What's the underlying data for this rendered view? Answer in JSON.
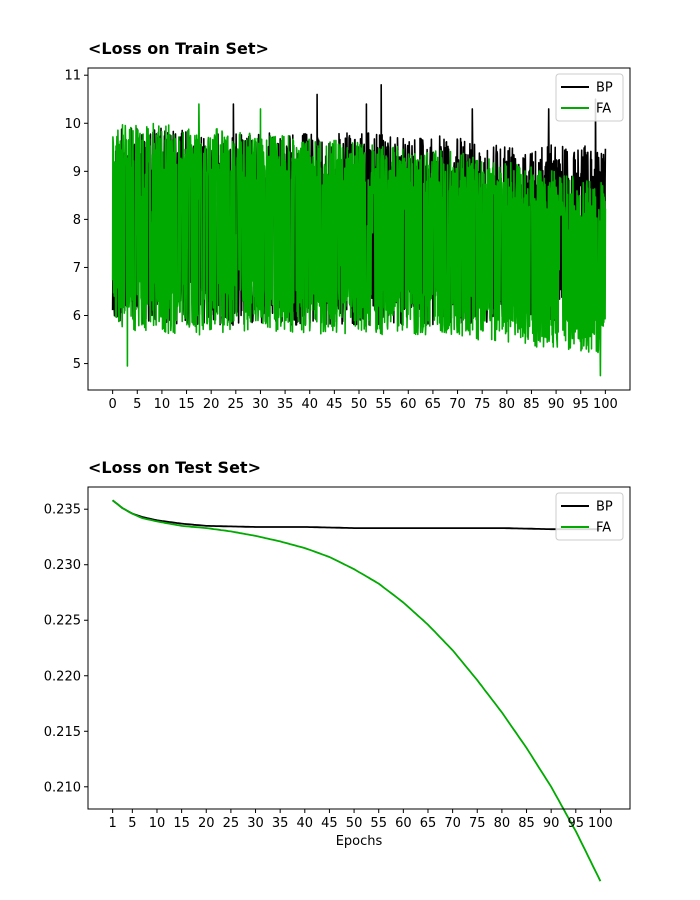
{
  "colors": {
    "bp": "#000000",
    "fa": "#00aa00"
  },
  "chart_data": [
    {
      "type": "line",
      "title": "<Loss on Train Set>",
      "xlabel": "",
      "ylabel": "",
      "xlim": [
        -5,
        105
      ],
      "ylim": [
        4.45,
        11.15
      ],
      "xticks": [
        0,
        5,
        10,
        15,
        20,
        25,
        30,
        35,
        40,
        45,
        50,
        55,
        60,
        65,
        70,
        75,
        80,
        85,
        90,
        95,
        100
      ],
      "yticks": [
        5,
        6,
        7,
        8,
        9,
        10,
        11
      ],
      "legend": "upper-right",
      "grid": false,
      "note": "noisy per-iteration loss; envelope values sampled",
      "envelope_x": [
        0,
        10,
        20,
        30,
        40,
        50,
        60,
        70,
        80,
        90,
        100
      ],
      "series": [
        {
          "name": "BP",
          "color": "#000000",
          "upper": [
            9.9,
            9.9,
            9.8,
            9.8,
            9.8,
            9.8,
            9.8,
            9.7,
            9.6,
            9.6,
            9.5
          ],
          "lower": [
            5.8,
            5.8,
            5.8,
            5.8,
            5.8,
            5.8,
            5.8,
            5.8,
            5.9,
            5.9,
            6.0
          ],
          "spikes": [
            [
              54.5,
              10.8
            ],
            [
              41.5,
              10.6
            ],
            [
              24.5,
              10.4
            ],
            [
              51.5,
              10.4
            ],
            [
              88.5,
              10.3
            ],
            [
              73,
              10.3
            ],
            [
              98,
              10.5
            ]
          ]
        },
        {
          "name": "FA",
          "color": "#00aa00",
          "upper": [
            10.0,
            10.0,
            9.9,
            9.8,
            9.7,
            9.6,
            9.5,
            9.4,
            9.2,
            9.0,
            8.8
          ],
          "lower": [
            5.7,
            5.6,
            5.6,
            5.7,
            5.6,
            5.6,
            5.6,
            5.5,
            5.4,
            5.3,
            5.2
          ],
          "spikes": [
            [
              17.5,
              10.4
            ],
            [
              3,
              4.95
            ],
            [
              99,
              4.75
            ],
            [
              30,
              10.3
            ]
          ]
        }
      ]
    },
    {
      "type": "line",
      "title": "<Loss on Test Set>",
      "xlabel": "Epochs",
      "ylabel": "",
      "xlim": [
        -4,
        106
      ],
      "ylim": [
        0.208,
        0.237
      ],
      "xticks": [
        1,
        5,
        10,
        15,
        20,
        25,
        30,
        35,
        40,
        45,
        50,
        55,
        60,
        65,
        70,
        75,
        80,
        85,
        90,
        95,
        100
      ],
      "yticks": [
        0.21,
        0.215,
        0.22,
        0.225,
        0.23,
        0.235
      ],
      "ytick_labels": [
        "0.210",
        "0.215",
        "0.220",
        "0.225",
        "0.230",
        "0.235"
      ],
      "legend": "upper-right",
      "grid": false,
      "series": [
        {
          "name": "BP",
          "color": "#000000",
          "x": [
            1,
            3,
            5,
            7,
            10,
            15,
            20,
            30,
            40,
            50,
            60,
            70,
            80,
            90,
            100
          ],
          "y": [
            0.2358,
            0.2351,
            0.2346,
            0.2343,
            0.234,
            0.2337,
            0.2335,
            0.2334,
            0.2334,
            0.2333,
            0.2333,
            0.2333,
            0.2333,
            0.2332,
            0.2332
          ]
        },
        {
          "name": "FA",
          "color": "#00aa00",
          "x": [
            1,
            3,
            5,
            7,
            10,
            15,
            20,
            25,
            30,
            35,
            40,
            45,
            50,
            55,
            60,
            65,
            70,
            75,
            80,
            85,
            90,
            95,
            100
          ],
          "y": [
            0.2358,
            0.2351,
            0.2346,
            0.2342,
            0.2339,
            0.2335,
            0.2333,
            0.233,
            0.2326,
            0.2321,
            0.2315,
            0.2307,
            0.2296,
            0.2283,
            0.2266,
            0.2246,
            0.2223,
            0.2196,
            0.2167,
            0.2135,
            0.21,
            0.206,
            0.2015
          ]
        }
      ]
    }
  ]
}
